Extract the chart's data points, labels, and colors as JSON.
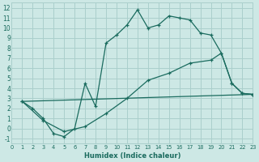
{
  "xlabel": "Humidex (Indice chaleur)",
  "bg_color": "#cde8e5",
  "grid_color": "#aacfcc",
  "line_color": "#1a6b5e",
  "xlim": [
    0,
    23
  ],
  "ylim": [
    -1.5,
    12.5
  ],
  "xticks": [
    0,
    1,
    2,
    3,
    4,
    5,
    6,
    7,
    8,
    9,
    10,
    11,
    12,
    13,
    14,
    15,
    16,
    17,
    18,
    19,
    20,
    21,
    22,
    23
  ],
  "yticks": [
    -1,
    0,
    1,
    2,
    3,
    4,
    5,
    6,
    7,
    8,
    9,
    10,
    11,
    12
  ],
  "line1_x": [
    1,
    2,
    3,
    4,
    5,
    6,
    7,
    8,
    9,
    10,
    11,
    12,
    13,
    14,
    15,
    16,
    17,
    18,
    19,
    20,
    21,
    22,
    23
  ],
  "line1_y": [
    2.7,
    2.0,
    1.0,
    -0.5,
    -0.8,
    0.0,
    4.5,
    2.2,
    8.5,
    9.3,
    10.3,
    11.8,
    10.0,
    10.3,
    11.2,
    11.0,
    10.8,
    9.5,
    9.3,
    7.5,
    4.5,
    3.5,
    3.4
  ],
  "line2_x": [
    1,
    3,
    5,
    7,
    9,
    11,
    13,
    15,
    17,
    19,
    20,
    21,
    22,
    23
  ],
  "line2_y": [
    2.7,
    0.8,
    -0.3,
    0.2,
    1.5,
    3.0,
    4.8,
    5.5,
    6.5,
    6.8,
    7.5,
    4.5,
    3.5,
    3.4
  ],
  "line3_x": [
    1,
    23
  ],
  "line3_y": [
    2.7,
    3.4
  ]
}
